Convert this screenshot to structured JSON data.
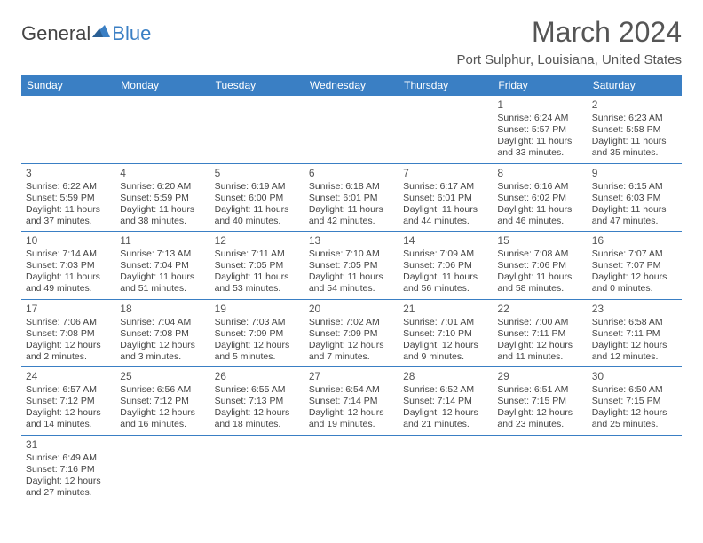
{
  "logo": {
    "text1": "General",
    "text2": "Blue"
  },
  "title": "March 2024",
  "location": "Port Sulphur, Louisiana, United States",
  "colors": {
    "header_bg": "#3a7fc4",
    "border": "#3a7fc4",
    "text": "#444444",
    "bg": "#ffffff"
  },
  "daynames": [
    "Sunday",
    "Monday",
    "Tuesday",
    "Wednesday",
    "Thursday",
    "Friday",
    "Saturday"
  ],
  "weeks": [
    [
      null,
      null,
      null,
      null,
      null,
      {
        "n": "1",
        "sr": "Sunrise: 6:24 AM",
        "ss": "Sunset: 5:57 PM",
        "dl": "Daylight: 11 hours and 33 minutes."
      },
      {
        "n": "2",
        "sr": "Sunrise: 6:23 AM",
        "ss": "Sunset: 5:58 PM",
        "dl": "Daylight: 11 hours and 35 minutes."
      }
    ],
    [
      {
        "n": "3",
        "sr": "Sunrise: 6:22 AM",
        "ss": "Sunset: 5:59 PM",
        "dl": "Daylight: 11 hours and 37 minutes."
      },
      {
        "n": "4",
        "sr": "Sunrise: 6:20 AM",
        "ss": "Sunset: 5:59 PM",
        "dl": "Daylight: 11 hours and 38 minutes."
      },
      {
        "n": "5",
        "sr": "Sunrise: 6:19 AM",
        "ss": "Sunset: 6:00 PM",
        "dl": "Daylight: 11 hours and 40 minutes."
      },
      {
        "n": "6",
        "sr": "Sunrise: 6:18 AM",
        "ss": "Sunset: 6:01 PM",
        "dl": "Daylight: 11 hours and 42 minutes."
      },
      {
        "n": "7",
        "sr": "Sunrise: 6:17 AM",
        "ss": "Sunset: 6:01 PM",
        "dl": "Daylight: 11 hours and 44 minutes."
      },
      {
        "n": "8",
        "sr": "Sunrise: 6:16 AM",
        "ss": "Sunset: 6:02 PM",
        "dl": "Daylight: 11 hours and 46 minutes."
      },
      {
        "n": "9",
        "sr": "Sunrise: 6:15 AM",
        "ss": "Sunset: 6:03 PM",
        "dl": "Daylight: 11 hours and 47 minutes."
      }
    ],
    [
      {
        "n": "10",
        "sr": "Sunrise: 7:14 AM",
        "ss": "Sunset: 7:03 PM",
        "dl": "Daylight: 11 hours and 49 minutes."
      },
      {
        "n": "11",
        "sr": "Sunrise: 7:13 AM",
        "ss": "Sunset: 7:04 PM",
        "dl": "Daylight: 11 hours and 51 minutes."
      },
      {
        "n": "12",
        "sr": "Sunrise: 7:11 AM",
        "ss": "Sunset: 7:05 PM",
        "dl": "Daylight: 11 hours and 53 minutes."
      },
      {
        "n": "13",
        "sr": "Sunrise: 7:10 AM",
        "ss": "Sunset: 7:05 PM",
        "dl": "Daylight: 11 hours and 54 minutes."
      },
      {
        "n": "14",
        "sr": "Sunrise: 7:09 AM",
        "ss": "Sunset: 7:06 PM",
        "dl": "Daylight: 11 hours and 56 minutes."
      },
      {
        "n": "15",
        "sr": "Sunrise: 7:08 AM",
        "ss": "Sunset: 7:06 PM",
        "dl": "Daylight: 11 hours and 58 minutes."
      },
      {
        "n": "16",
        "sr": "Sunrise: 7:07 AM",
        "ss": "Sunset: 7:07 PM",
        "dl": "Daylight: 12 hours and 0 minutes."
      }
    ],
    [
      {
        "n": "17",
        "sr": "Sunrise: 7:06 AM",
        "ss": "Sunset: 7:08 PM",
        "dl": "Daylight: 12 hours and 2 minutes."
      },
      {
        "n": "18",
        "sr": "Sunrise: 7:04 AM",
        "ss": "Sunset: 7:08 PM",
        "dl": "Daylight: 12 hours and 3 minutes."
      },
      {
        "n": "19",
        "sr": "Sunrise: 7:03 AM",
        "ss": "Sunset: 7:09 PM",
        "dl": "Daylight: 12 hours and 5 minutes."
      },
      {
        "n": "20",
        "sr": "Sunrise: 7:02 AM",
        "ss": "Sunset: 7:09 PM",
        "dl": "Daylight: 12 hours and 7 minutes."
      },
      {
        "n": "21",
        "sr": "Sunrise: 7:01 AM",
        "ss": "Sunset: 7:10 PM",
        "dl": "Daylight: 12 hours and 9 minutes."
      },
      {
        "n": "22",
        "sr": "Sunrise: 7:00 AM",
        "ss": "Sunset: 7:11 PM",
        "dl": "Daylight: 12 hours and 11 minutes."
      },
      {
        "n": "23",
        "sr": "Sunrise: 6:58 AM",
        "ss": "Sunset: 7:11 PM",
        "dl": "Daylight: 12 hours and 12 minutes."
      }
    ],
    [
      {
        "n": "24",
        "sr": "Sunrise: 6:57 AM",
        "ss": "Sunset: 7:12 PM",
        "dl": "Daylight: 12 hours and 14 minutes."
      },
      {
        "n": "25",
        "sr": "Sunrise: 6:56 AM",
        "ss": "Sunset: 7:12 PM",
        "dl": "Daylight: 12 hours and 16 minutes."
      },
      {
        "n": "26",
        "sr": "Sunrise: 6:55 AM",
        "ss": "Sunset: 7:13 PM",
        "dl": "Daylight: 12 hours and 18 minutes."
      },
      {
        "n": "27",
        "sr": "Sunrise: 6:54 AM",
        "ss": "Sunset: 7:14 PM",
        "dl": "Daylight: 12 hours and 19 minutes."
      },
      {
        "n": "28",
        "sr": "Sunrise: 6:52 AM",
        "ss": "Sunset: 7:14 PM",
        "dl": "Daylight: 12 hours and 21 minutes."
      },
      {
        "n": "29",
        "sr": "Sunrise: 6:51 AM",
        "ss": "Sunset: 7:15 PM",
        "dl": "Daylight: 12 hours and 23 minutes."
      },
      {
        "n": "30",
        "sr": "Sunrise: 6:50 AM",
        "ss": "Sunset: 7:15 PM",
        "dl": "Daylight: 12 hours and 25 minutes."
      }
    ],
    [
      {
        "n": "31",
        "sr": "Sunrise: 6:49 AM",
        "ss": "Sunset: 7:16 PM",
        "dl": "Daylight: 12 hours and 27 minutes."
      },
      null,
      null,
      null,
      null,
      null,
      null
    ]
  ]
}
